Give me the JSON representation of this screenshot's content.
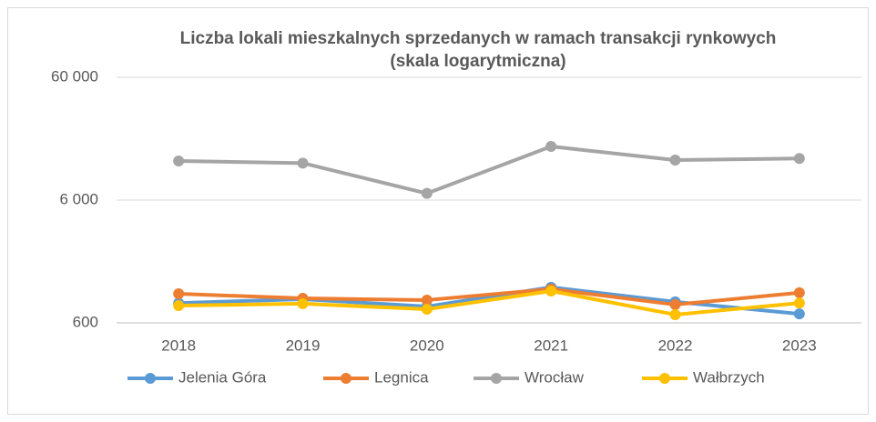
{
  "chart_data": {
    "type": "line",
    "title": "Liczba lokali mieszkalnych sprzedanych w ramach transakcji rynkowych (skala logarytmiczna)",
    "categories": [
      "2018",
      "2019",
      "2020",
      "2021",
      "2022",
      "2023"
    ],
    "series": [
      {
        "name": "Jelenia Góra",
        "color": "#5b9bd5",
        "values": [
          870,
          935,
          815,
          1170,
          890,
          710
        ]
      },
      {
        "name": "Legnica",
        "color": "#ed7d31",
        "values": [
          1035,
          950,
          920,
          1130,
          845,
          1055
        ]
      },
      {
        "name": "Wrocław",
        "color": "#a5a5a5",
        "values": [
          12500,
          12000,
          6800,
          16400,
          12700,
          13100
        ]
      },
      {
        "name": "Wałbrzych",
        "color": "#ffc000",
        "values": [
          830,
          860,
          775,
          1090,
          700,
          870
        ]
      }
    ],
    "ylim": [
      600,
      60000
    ],
    "yticks": [
      600,
      {
        "value": 6000,
        "label": "6 000"
      },
      {
        "value": 60000,
        "label": "60 000"
      }
    ],
    "log_scale": true,
    "grid": true,
    "legend": "bottom"
  }
}
